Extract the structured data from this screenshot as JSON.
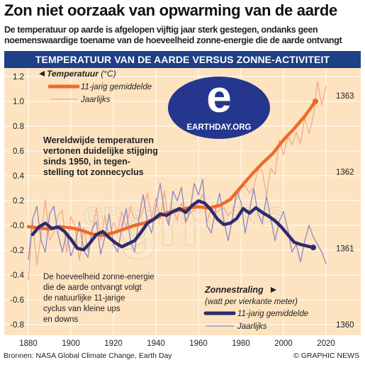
{
  "header": {
    "title": "Zon niet oorzaak van opwarming van de aarde",
    "subtitle_lines": [
      "De temperatuur op aarde is afgelopen vijftig jaar sterk gestegen, ondanks geen",
      "noemenswaardige toename van de hoeveelheid zonne-energie die de aarde ontvangt"
    ]
  },
  "banner": {
    "text": "TEMPERATUUR VAN DE AARDE VERSUS ZONNE-ACTIVITEIT"
  },
  "logo": {
    "text": "EARTHDAY.ORG",
    "letter": "e",
    "icon": "earthday-logo-icon"
  },
  "watermark": {
    "text": "GRAPHIC NEWS",
    "letter": "gn"
  },
  "legend_temp": {
    "title": "Temperatuur",
    "unit": " (°C)",
    "avg_label": "11-jarig gemiddelde",
    "yearly_label": "Jaarlijks"
  },
  "legend_sun": {
    "title": "Zonnestraling",
    "unit": "(watt per vierkante meter)",
    "avg_label": "11-jarig gemiddelde",
    "yearly_label": "Jaarlijks"
  },
  "annotations": {
    "temp_note": [
      "Wereldwijde temperaturen",
      "vertonen duidelijke stijging",
      "sinds 1950, in tegen-",
      "stelling tot zonnecyclus"
    ],
    "sun_note": [
      "De hoeveelheid zonne-energie",
      "die de aarde ontvangt volgt",
      "de natuurlijke 11-jarige",
      "cyclus van kleine ups",
      "en downs"
    ]
  },
  "footer": {
    "source": "Bronnen: NASA Global Climate Change, Earth Day",
    "credit": "© GRAPHIC NEWS"
  },
  "colors": {
    "background": "#fde3bf",
    "banner": "#1f3f86",
    "temp_avg": "#ef6a28",
    "temp_yearly": "#f2a98f",
    "sun_avg": "#2e2a6e",
    "sun_yearly": "#8c87c4",
    "logo": "#25368e",
    "text": "#222222"
  },
  "chart_data": {
    "type": "line",
    "x_label": "",
    "xlim": [
      1880,
      2020
    ],
    "x_ticks": [
      1880,
      1900,
      1920,
      1940,
      1960,
      1980,
      2000,
      2020
    ],
    "y_left": {
      "label": "Temperatuur (°C)",
      "range": [
        -0.8,
        1.2
      ],
      "ticks": [
        "1.2",
        "1.0",
        "0.8",
        "0.6",
        "0.4",
        "0.2",
        "-0.0",
        "-0.2",
        "-0.4",
        "-0.6",
        "-0.8"
      ]
    },
    "y_right": {
      "label": "Zonnestraling (watt per vierkante meter)",
      "range": [
        1360,
        1363.25
      ],
      "ticks": [
        "1363",
        "1362",
        "1361",
        "1360"
      ]
    },
    "series": [
      {
        "name": "Temperatuur 11-jarig gemiddelde",
        "axis": "left",
        "x": [
          1880,
          1885,
          1890,
          1895,
          1900,
          1905,
          1910,
          1915,
          1920,
          1925,
          1930,
          1935,
          1940,
          1945,
          1950,
          1955,
          1960,
          1965,
          1970,
          1975,
          1980,
          1985,
          1990,
          1995,
          2000,
          2005,
          2010,
          2015
        ],
        "y": [
          -0.01,
          -0.02,
          -0.03,
          -0.01,
          -0.02,
          -0.04,
          -0.07,
          -0.08,
          -0.06,
          -0.03,
          0.0,
          0.02,
          0.06,
          0.1,
          0.12,
          0.14,
          0.15,
          0.14,
          0.16,
          0.21,
          0.31,
          0.41,
          0.5,
          0.58,
          0.69,
          0.78,
          0.88,
          1.0
        ]
      },
      {
        "name": "Temperatuur jaarlijks",
        "axis": "left",
        "x": [
          1880,
          1882,
          1884,
          1886,
          1888,
          1890,
          1892,
          1894,
          1896,
          1898,
          1900,
          1902,
          1904,
          1906,
          1908,
          1910,
          1912,
          1914,
          1916,
          1918,
          1920,
          1922,
          1924,
          1926,
          1928,
          1930,
          1932,
          1934,
          1936,
          1938,
          1940,
          1942,
          1944,
          1946,
          1948,
          1950,
          1952,
          1954,
          1956,
          1958,
          1960,
          1962,
          1964,
          1966,
          1968,
          1970,
          1972,
          1974,
          1976,
          1978,
          1980,
          1982,
          1984,
          1986,
          1988,
          1990,
          1992,
          1994,
          1996,
          1998,
          2000,
          2002,
          2004,
          2006,
          2008,
          2010,
          2012,
          2014,
          2016,
          2018,
          2020
        ],
        "y": [
          -0.44,
          0.04,
          -0.32,
          -0.08,
          0.21,
          -0.12,
          -0.06,
          0.08,
          0.12,
          -0.22,
          0.07,
          -0.01,
          -0.28,
          -0.02,
          -0.21,
          -0.04,
          0.14,
          -0.12,
          0.08,
          -0.1,
          0.02,
          -0.05,
          0.11,
          -0.02,
          0.15,
          0.05,
          0.05,
          0.12,
          0.26,
          0.06,
          0.22,
          0.05,
          0.28,
          0.02,
          0.14,
          0.04,
          0.18,
          0.02,
          0.1,
          0.12,
          0.18,
          0.25,
          0.03,
          0.14,
          0.09,
          0.13,
          0.14,
          0.08,
          0.12,
          0.22,
          0.3,
          0.32,
          0.26,
          0.31,
          0.45,
          0.44,
          0.24,
          0.46,
          0.41,
          0.69,
          0.57,
          0.72,
          0.65,
          0.75,
          0.66,
          0.87,
          0.74,
          0.88,
          1.16,
          0.97,
          1.12
        ]
      },
      {
        "name": "Zonnestraling 11-jarig gemiddelde",
        "axis": "right",
        "x": [
          1882,
          1885,
          1888,
          1891,
          1894,
          1897,
          1900,
          1903,
          1906,
          1909,
          1912,
          1915,
          1918,
          1921,
          1924,
          1927,
          1930,
          1933,
          1936,
          1939,
          1942,
          1945,
          1948,
          1951,
          1954,
          1957,
          1960,
          1963,
          1966,
          1969,
          1972,
          1975,
          1978,
          1981,
          1984,
          1987,
          1990,
          1993,
          1996,
          1999,
          2002,
          2005,
          2008,
          2011,
          2014
        ],
        "y": [
          1361.18,
          1361.28,
          1361.33,
          1361.26,
          1361.28,
          1361.22,
          1361.12,
          1361.0,
          1360.98,
          1361.07,
          1361.18,
          1361.22,
          1361.14,
          1361.07,
          1361.02,
          1361.06,
          1361.1,
          1361.21,
          1361.33,
          1361.38,
          1361.45,
          1361.43,
          1361.48,
          1361.52,
          1361.47,
          1361.56,
          1361.62,
          1361.59,
          1361.5,
          1361.38,
          1361.31,
          1361.33,
          1361.39,
          1361.52,
          1361.46,
          1361.53,
          1361.47,
          1361.42,
          1361.36,
          1361.28,
          1361.18,
          1361.08,
          1361.05,
          1361.03,
          1361.01
        ]
      },
      {
        "name": "Zonnestraling jaarlijks",
        "axis": "right",
        "x": [
          1880,
          1882,
          1884,
          1886,
          1888,
          1890,
          1892,
          1894,
          1896,
          1898,
          1900,
          1902,
          1904,
          1906,
          1908,
          1910,
          1912,
          1914,
          1916,
          1918,
          1920,
          1922,
          1924,
          1926,
          1928,
          1930,
          1932,
          1934,
          1936,
          1938,
          1940,
          1942,
          1944,
          1946,
          1948,
          1950,
          1952,
          1954,
          1956,
          1958,
          1960,
          1962,
          1964,
          1966,
          1968,
          1970,
          1972,
          1974,
          1976,
          1978,
          1980,
          1982,
          1984,
          1986,
          1988,
          1990,
          1992,
          1994,
          1996,
          1998,
          2000,
          2002,
          2004,
          2006,
          2008,
          2010,
          2012,
          2014,
          2016,
          2018,
          2020
        ],
        "y": [
          1360.85,
          1361.38,
          1361.55,
          1361.1,
          1360.95,
          1361.45,
          1361.55,
          1361.18,
          1360.95,
          1361.2,
          1360.9,
          1361.05,
          1361.35,
          1360.98,
          1360.88,
          1361.25,
          1361.35,
          1360.92,
          1361.15,
          1361.45,
          1361.05,
          1360.95,
          1361.28,
          1361.52,
          1361.1,
          1360.95,
          1361.4,
          1361.7,
          1361.35,
          1361.2,
          1361.55,
          1361.85,
          1361.48,
          1361.3,
          1361.75,
          1361.62,
          1361.8,
          1361.35,
          1361.48,
          1361.85,
          1361.7,
          1361.9,
          1361.3,
          1361.2,
          1361.5,
          1361.72,
          1361.35,
          1361.1,
          1361.4,
          1361.75,
          1361.6,
          1361.2,
          1361.5,
          1361.78,
          1361.45,
          1361.32,
          1361.68,
          1361.4,
          1361.1,
          1361.35,
          1361.48,
          1361.25,
          1360.95,
          1361.05,
          1360.82,
          1361.1,
          1361.3,
          1361.15,
          1361.05,
          1360.95,
          1360.8
        ]
      }
    ]
  }
}
